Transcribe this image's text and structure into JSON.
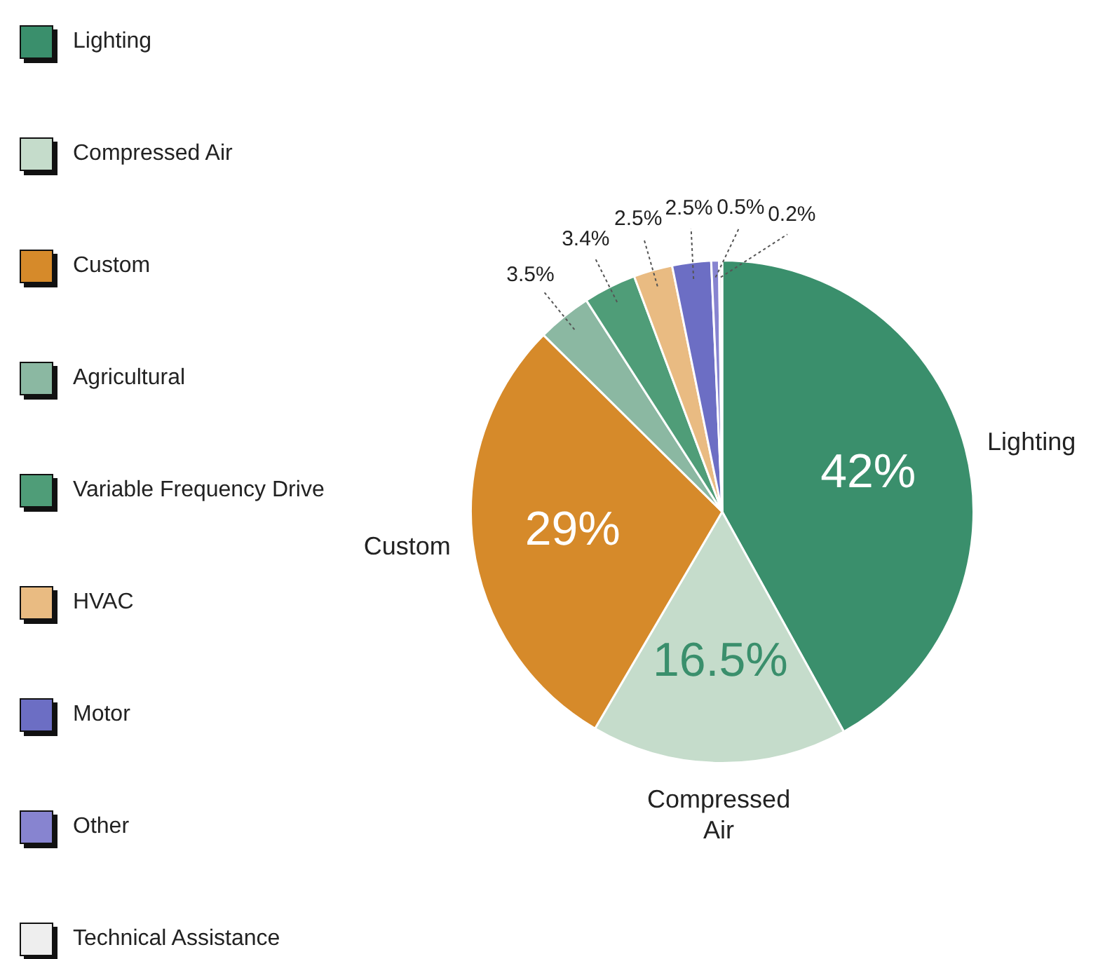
{
  "chart_data": {
    "type": "pie",
    "categories": [
      "Lighting",
      "Compressed Air",
      "Custom",
      "Agricultural",
      "Variable Frequency Drive",
      "HVAC",
      "Motor",
      "Other",
      "Technical Assistance"
    ],
    "values": [
      42,
      16.5,
      29,
      3.5,
      3.4,
      2.5,
      2.5,
      0.5,
      0.2
    ],
    "colors": [
      "#3a8f6c",
      "#c5dccb",
      "#d68a2a",
      "#8bb8a2",
      "#4f9d78",
      "#e9bb82",
      "#6c6ec4",
      "#8784d0",
      "#eeeeee"
    ],
    "value_labels": [
      "42%",
      "16.5%",
      "29%",
      "3.5%",
      "3.4%",
      "2.5%",
      "2.5%",
      "0.5%",
      "0.2%"
    ],
    "legend": "left",
    "annotations": [
      "Lighting",
      "Compressed Air",
      "Custom"
    ]
  }
}
